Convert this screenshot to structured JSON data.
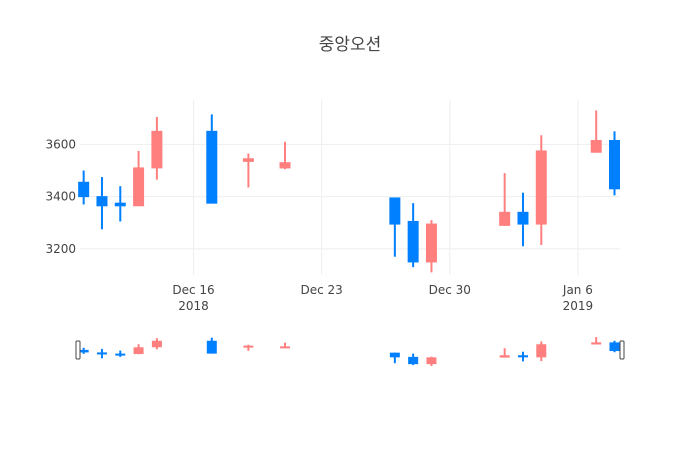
{
  "chart_data": {
    "type": "candlestick",
    "title": "중앙오션",
    "ylim": [
      3100,
      3770
    ],
    "y_ticks": [
      3200,
      3400,
      3600
    ],
    "y_tick_labels": [
      "3200",
      "3400",
      "3600"
    ],
    "x_ticks": [
      {
        "date": "2018-12-16",
        "label": "Dec 16",
        "sublabel": "2018"
      },
      {
        "date": "2018-12-23",
        "label": "Dec 23",
        "sublabel": ""
      },
      {
        "date": "2018-12-30",
        "label": "Dec 30",
        "sublabel": ""
      },
      {
        "date": "2019-01-06",
        "label": "Jan 6",
        "sublabel": "2019"
      }
    ],
    "xlim": [
      "2018-12-10",
      "2019-01-08"
    ],
    "increasing_color": "#FF7F7F",
    "decreasing_color": "#007FFF",
    "grid": true,
    "range_slider": true,
    "candles": [
      {
        "date": "2018-12-10",
        "open": 3455,
        "high": 3500,
        "low": 3370,
        "close": 3400
      },
      {
        "date": "2018-12-11",
        "open": 3400,
        "high": 3475,
        "low": 3275,
        "close": 3365
      },
      {
        "date": "2018-12-12",
        "open": 3375,
        "high": 3440,
        "low": 3305,
        "close": 3365
      },
      {
        "date": "2018-12-13",
        "open": 3365,
        "high": 3575,
        "low": 3365,
        "close": 3510
      },
      {
        "date": "2018-12-14",
        "open": 3510,
        "high": 3705,
        "low": 3465,
        "close": 3650
      },
      {
        "date": "2018-12-17",
        "open": 3650,
        "high": 3715,
        "low": 3375,
        "close": 3375
      },
      {
        "date": "2018-12-19",
        "open": 3535,
        "high": 3565,
        "low": 3435,
        "close": 3545
      },
      {
        "date": "2018-12-21",
        "open": 3510,
        "high": 3610,
        "low": 3505,
        "close": 3530
      },
      {
        "date": "2018-12-27",
        "open": 3395,
        "high": 3395,
        "low": 3170,
        "close": 3295
      },
      {
        "date": "2018-12-28",
        "open": 3305,
        "high": 3375,
        "low": 3130,
        "close": 3150
      },
      {
        "date": "2018-12-29",
        "open": 3150,
        "high": 3310,
        "low": 3110,
        "close": 3295
      },
      {
        "date": "2019-01-02",
        "open": 3290,
        "high": 3490,
        "low": 3290,
        "close": 3340
      },
      {
        "date": "2019-01-03",
        "open": 3340,
        "high": 3415,
        "low": 3210,
        "close": 3295
      },
      {
        "date": "2019-01-04",
        "open": 3295,
        "high": 3635,
        "low": 3215,
        "close": 3575
      },
      {
        "date": "2019-01-07",
        "open": 3570,
        "high": 3730,
        "low": 3570,
        "close": 3615
      },
      {
        "date": "2019-01-08",
        "open": 3615,
        "high": 3650,
        "low": 3405,
        "close": 3430
      }
    ]
  }
}
